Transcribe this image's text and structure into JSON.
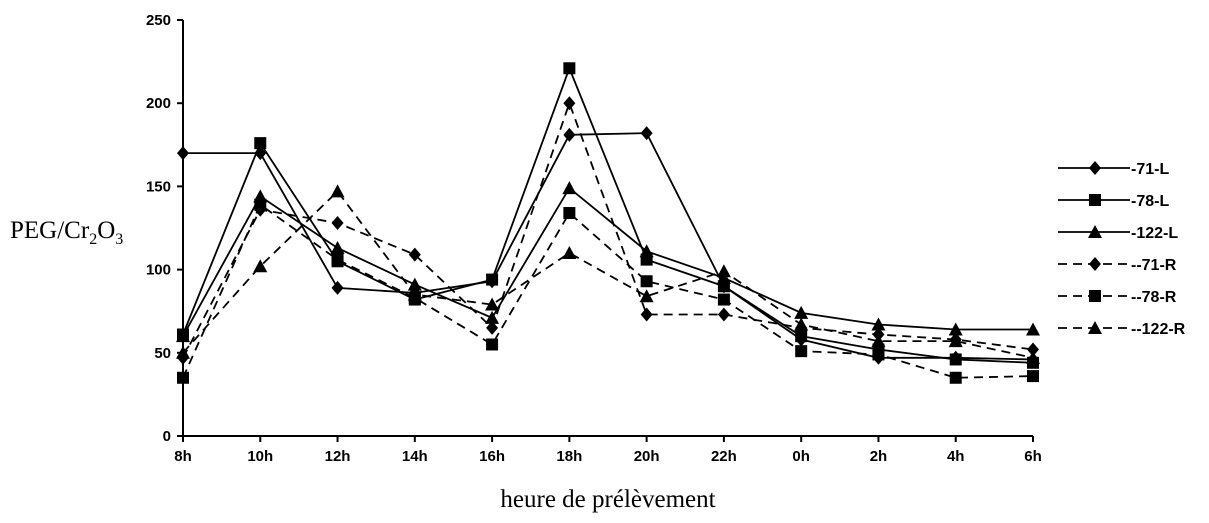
{
  "chart_data": {
    "type": "line",
    "title": "",
    "xlabel": "heure de prélèvement",
    "ylabel_parts": {
      "base": "PEG/Cr",
      "sub1": "2",
      "mid": "O",
      "sub2": "3"
    },
    "categories": [
      "8h",
      "10h",
      "12h",
      "14h",
      "16h",
      "18h",
      "20h",
      "22h",
      "0h",
      "2h",
      "4h",
      "6h"
    ],
    "ylim": [
      0,
      250
    ],
    "yticks": [
      "0",
      "50",
      "100",
      "150",
      "200",
      "250"
    ],
    "grid": false,
    "legend_position": "right",
    "series": [
      {
        "name": "-71-L",
        "marker": "diamond",
        "dash": "solid",
        "values": [
          170,
          170,
          89,
          86,
          93,
          181,
          182,
          90,
          58,
          47,
          47,
          46
        ]
      },
      {
        "name": "-78-L",
        "marker": "square",
        "dash": "solid",
        "values": [
          61,
          176,
          105,
          82,
          94,
          221,
          106,
          90,
          60,
          52,
          46,
          44
        ]
      },
      {
        "name": "-122-L",
        "marker": "triangle",
        "dash": "solid",
        "values": [
          60,
          144,
          113,
          91,
          71,
          149,
          111,
          95,
          74,
          67,
          64,
          64
        ]
      },
      {
        "name": "--71-R",
        "marker": "diamond",
        "dash": "dashed",
        "values": [
          47,
          136,
          128,
          109,
          65,
          200,
          73,
          73,
          65,
          61,
          58,
          52
        ]
      },
      {
        "name": "--78-R",
        "marker": "square",
        "dash": "dashed",
        "values": [
          35,
          139,
          106,
          83,
          55,
          134,
          93,
          82,
          51,
          49,
          35,
          36
        ]
      },
      {
        "name": "--122-R",
        "marker": "triangle",
        "dash": "dashed",
        "values": [
          50,
          102,
          147,
          85,
          79,
          110,
          84,
          99,
          67,
          57,
          57,
          47
        ]
      }
    ]
  }
}
